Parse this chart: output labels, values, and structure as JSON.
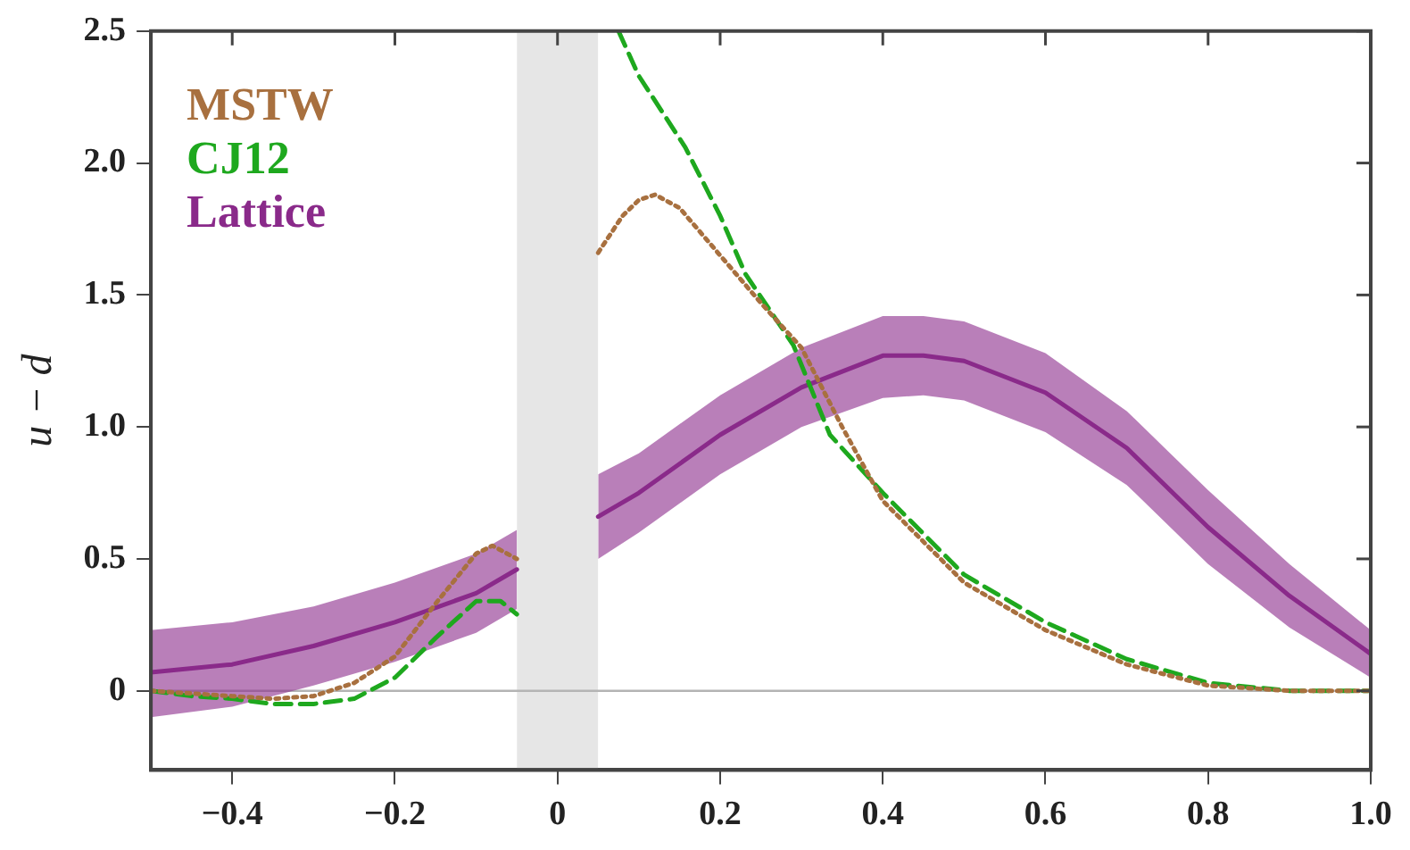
{
  "chart_data": {
    "type": "line",
    "ylabel": "u − d",
    "xlim": [
      -0.5,
      1.0
    ],
    "ylim": [
      -0.3,
      2.5
    ],
    "xticks": [
      {
        "value": -0.4,
        "label": "−0.4"
      },
      {
        "value": -0.2,
        "label": "−0.2"
      },
      0,
      0.2,
      0.4,
      0.6,
      0.8,
      {
        "value": 1.0,
        "label": "1.0"
      }
    ],
    "yticks": [
      0,
      0.5,
      {
        "value": 1.0,
        "label": "1.0"
      },
      1.5,
      {
        "value": 2.0,
        "label": "2.0"
      },
      2.5
    ],
    "legend": "top left",
    "grid": false,
    "marker": "none",
    "series": [
      {
        "name": "MSTW",
        "color": "#a8703f",
        "line_style": "dotted",
        "x": [
          -0.5,
          -0.45,
          -0.4,
          -0.35,
          -0.3,
          -0.25,
          -0.2,
          -0.15,
          -0.1,
          -0.08,
          -0.05,
          0,
          0.05,
          0.08,
          0.1,
          0.12,
          0.15,
          0.2,
          0.25,
          0.3,
          0.35,
          0.4,
          0.5,
          0.6,
          0.7,
          0.8,
          0.9,
          1.0
        ],
        "values": [
          0.0,
          -0.01,
          -0.02,
          -0.03,
          -0.02,
          0.03,
          0.13,
          0.33,
          0.52,
          0.55,
          0.5,
          null,
          1.66,
          1.8,
          1.86,
          1.88,
          1.83,
          1.65,
          1.47,
          1.3,
          1.0,
          0.72,
          0.41,
          0.23,
          0.1,
          0.02,
          0.0,
          0.0
        ]
      },
      {
        "name": "CJ12",
        "color": "#1ea81e",
        "line_style": "dashed",
        "x": [
          -0.5,
          -0.45,
          -0.4,
          -0.35,
          -0.3,
          -0.25,
          -0.2,
          -0.15,
          -0.1,
          -0.07,
          -0.05,
          0,
          0.075,
          0.1,
          0.157,
          0.2,
          0.231,
          0.29,
          0.335,
          0.4,
          0.5,
          0.6,
          0.7,
          0.8,
          0.9,
          1.0
        ],
        "values": [
          0.0,
          -0.02,
          -0.03,
          -0.05,
          -0.05,
          -0.03,
          0.05,
          0.2,
          0.34,
          0.34,
          0.29,
          null,
          2.5,
          2.33,
          2.06,
          1.8,
          1.58,
          1.31,
          0.97,
          0.75,
          0.44,
          0.26,
          0.12,
          0.03,
          0.0,
          0.0
        ]
      },
      {
        "name": "Lattice",
        "color": "#8a2a8a",
        "line_style": "solid",
        "x": [
          -0.5,
          -0.4,
          -0.3,
          -0.2,
          -0.1,
          -0.05,
          0,
          0.05,
          0.1,
          0.2,
          0.3,
          0.4,
          0.45,
          0.5,
          0.6,
          0.7,
          0.8,
          0.9,
          1.0
        ],
        "values": [
          0.07,
          0.1,
          0.17,
          0.26,
          0.37,
          0.46,
          null,
          0.66,
          0.75,
          0.97,
          1.15,
          1.27,
          1.27,
          1.25,
          1.13,
          0.92,
          0.62,
          0.36,
          0.14
        ],
        "lower": [
          -0.1,
          -0.06,
          0.02,
          0.11,
          0.22,
          0.31,
          null,
          0.5,
          0.6,
          0.82,
          1.0,
          1.11,
          1.12,
          1.1,
          0.98,
          0.78,
          0.48,
          0.24,
          0.05
        ],
        "upper": [
          0.23,
          0.26,
          0.32,
          0.41,
          0.52,
          0.61,
          null,
          0.82,
          0.9,
          1.12,
          1.3,
          1.42,
          1.42,
          1.4,
          1.28,
          1.06,
          0.76,
          0.48,
          0.23
        ]
      }
    ],
    "bands": [
      {
        "axis": "x",
        "from": -0.05,
        "to": 0.05,
        "color": "#9a9a9a"
      }
    ],
    "ref_lines": [
      {
        "axis": "y",
        "value": 0,
        "color": "#b4b4b4"
      }
    ]
  }
}
